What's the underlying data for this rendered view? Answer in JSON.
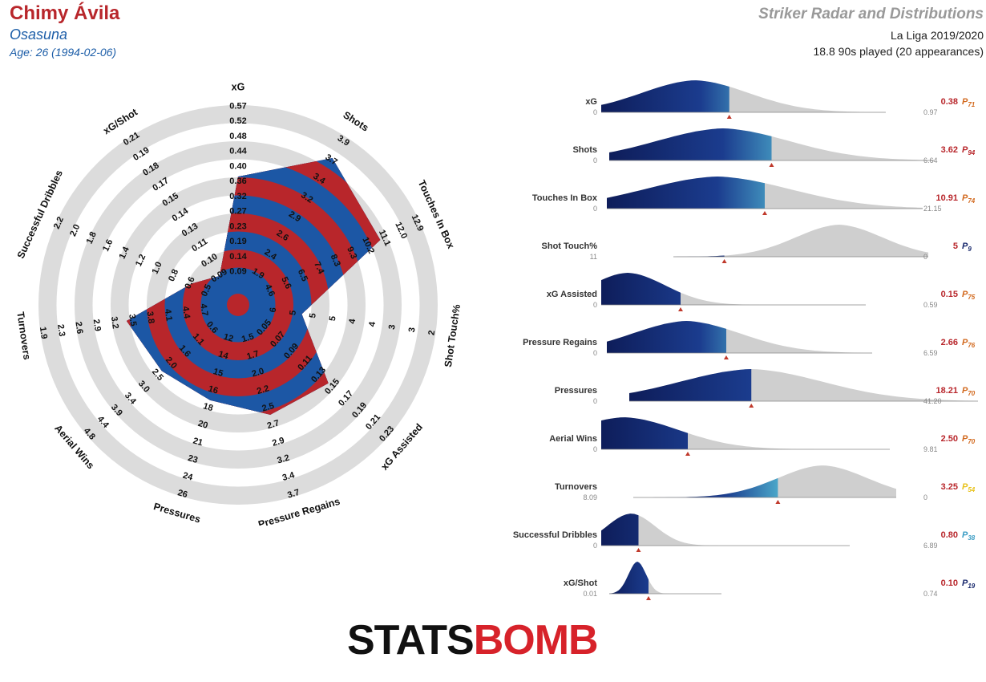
{
  "header": {
    "player_name": "Chimy Ávila",
    "team": "Osasuna",
    "age": "Age: 26 (1994-02-06)",
    "report_title": "Striker Radar and Distributions",
    "competition": "La Liga 2019/2020",
    "minutes": "18.8 90s played (20 appearances)"
  },
  "logo": {
    "part1": "STATS",
    "part2": "BOMB"
  },
  "colors": {
    "radar_red": "#b8262b",
    "radar_blue": "#1c57a5",
    "ring_grey": "#dcdcdc",
    "dist_grey": "#cfcfcf",
    "marker": "#c0392b",
    "title_red": "#b8262b",
    "title_blue": "#1d5ea8"
  },
  "chart_data": [
    {
      "type": "radar",
      "axes": [
        {
          "name": "xG",
          "ticks": [
            "0.09",
            "0.14",
            "0.19",
            "0.23",
            "0.27",
            "0.32",
            "0.36",
            "0.40",
            "0.44",
            "0.48",
            "0.52",
            "0.57"
          ],
          "value": 0.38,
          "range": [
            0.09,
            0.57
          ]
        },
        {
          "name": "Shots",
          "ticks": [
            "1.9",
            "2.4",
            "2.6",
            "2.9",
            "3.2",
            "3.4",
            "3.7",
            "3.9"
          ],
          "value": 3.62,
          "range": [
            1.9,
            3.9
          ]
        },
        {
          "name": "Touches In Box",
          "ticks": [
            "4.6",
            "5.6",
            "6.5",
            "7.4",
            "8.3",
            "9.3",
            "10.2",
            "11.1",
            "12.0",
            "12.9"
          ],
          "value": 10.91,
          "range": [
            4.6,
            12.9
          ]
        },
        {
          "name": "Shot Touch%",
          "ticks": [
            "6",
            "5",
            "5",
            "5",
            "4",
            "4",
            "3",
            "3",
            "2"
          ],
          "value": 5,
          "range": [
            6,
            2
          ]
        },
        {
          "name": "xG Assisted",
          "ticks": [
            "0.05",
            "0.07",
            "0.09",
            "0.11",
            "0.13",
            "0.15",
            "0.17",
            "0.19",
            "0.21",
            "0.23"
          ],
          "value": 0.15,
          "range": [
            0.05,
            0.23
          ]
        },
        {
          "name": "Pressure Regains",
          "ticks": [
            "1.5",
            "1.7",
            "2.0",
            "2.2",
            "2.5",
            "2.7",
            "2.9",
            "3.2",
            "3.4",
            "3.7"
          ],
          "value": 2.66,
          "range": [
            1.5,
            3.7
          ]
        },
        {
          "name": "Pressures",
          "ticks": [
            "12",
            "14",
            "15",
            "16",
            "18",
            "20",
            "21",
            "23",
            "24",
            "26"
          ],
          "value": 18.21,
          "range": [
            12,
            26
          ]
        },
        {
          "name": "Aerial Wins",
          "ticks": [
            "0.6",
            "1.1",
            "1.6",
            "2.0",
            "2.5",
            "3.0",
            "3.4",
            "3.9",
            "4.4",
            "4.8"
          ],
          "value": 2.5,
          "range": [
            0.6,
            4.8
          ]
        },
        {
          "name": "Turnovers",
          "ticks": [
            "4.7",
            "4.4",
            "4.1",
            "3.8",
            "3.5",
            "3.2",
            "2.9",
            "2.6",
            "2.3",
            "1.9"
          ],
          "value": 3.25,
          "range": [
            4.7,
            1.9
          ]
        },
        {
          "name": "Successful Dribbles",
          "ticks": [
            "0.5",
            "0.6",
            "0.8",
            "1.0",
            "1.2",
            "1.4",
            "1.6",
            "1.8",
            "2.0",
            "2.2"
          ],
          "value": 0.8,
          "range": [
            0.5,
            2.2
          ]
        },
        {
          "name": "xG/Shot",
          "ticks": [
            "0.09",
            "0.10",
            "0.11",
            "0.13",
            "0.14",
            "0.15",
            "0.17",
            "0.18",
            "0.19",
            "0.21"
          ],
          "value": 0.1,
          "range": [
            0.09,
            0.21
          ]
        }
      ]
    },
    {
      "type": "area",
      "title": "Distributions",
      "series": [
        {
          "name": "xG",
          "min": "0",
          "max": "0.97",
          "value": "0.38",
          "percentile": "71",
          "pcolor": "#d2691e"
        },
        {
          "name": "Shots",
          "min": "0",
          "max": "6.64",
          "value": "3.62",
          "percentile": "94",
          "pcolor": "#b8262b"
        },
        {
          "name": "Touches In Box",
          "min": "0",
          "max": "21.15",
          "value": "10.91",
          "percentile": "74",
          "pcolor": "#d2691e"
        },
        {
          "name": "Shot Touch%",
          "min": "11",
          "max": "0",
          "value": "5",
          "percentile": "9",
          "pcolor": "#1a2a6e"
        },
        {
          "name": "xG Assisted",
          "min": "0",
          "max": "0.59",
          "value": "0.15",
          "percentile": "75",
          "pcolor": "#d2691e"
        },
        {
          "name": "Pressure Regains",
          "min": "0",
          "max": "6.59",
          "value": "2.66",
          "percentile": "76",
          "pcolor": "#d2691e"
        },
        {
          "name": "Pressures",
          "min": "0",
          "max": "41.20",
          "value": "18.21",
          "percentile": "70",
          "pcolor": "#d2691e"
        },
        {
          "name": "Aerial Wins",
          "min": "0",
          "max": "9.81",
          "value": "2.50",
          "percentile": "70",
          "pcolor": "#d2691e"
        },
        {
          "name": "Turnovers",
          "min": "8.09",
          "max": "0",
          "value": "3.25",
          "percentile": "54",
          "pcolor": "#e8c21a"
        },
        {
          "name": "Successful Dribbles",
          "min": "0",
          "max": "6.89",
          "value": "0.80",
          "percentile": "38",
          "pcolor": "#3a9cc4"
        },
        {
          "name": "xG/Shot",
          "min": "0.01",
          "max": "0.74",
          "value": "0.10",
          "percentile": "19",
          "pcolor": "#1a2a6e"
        }
      ]
    }
  ]
}
